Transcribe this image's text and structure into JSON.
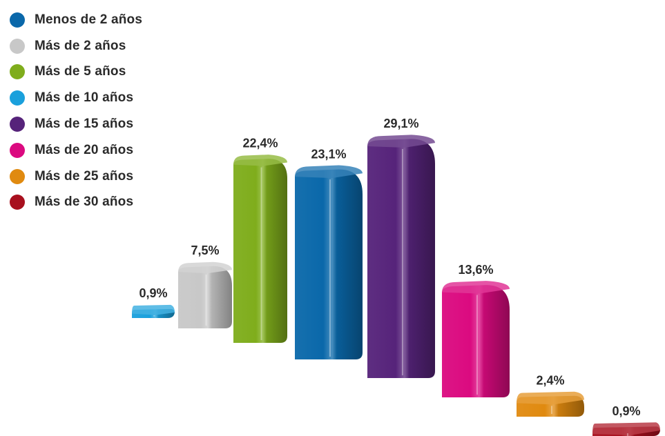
{
  "chart_data": {
    "type": "bar",
    "categories": [
      "Más de 10 años",
      "Más de 2 años",
      "Más de 5 años",
      "Menos de 2 años",
      "Más de 15 años",
      "Más de 20 años",
      "Más de 25 años",
      "Más de 30 años"
    ],
    "values": [
      0.9,
      7.5,
      22.4,
      23.1,
      29.1,
      13.6,
      2.4,
      0.9
    ],
    "data_labels": [
      "0,9%",
      "7,5%",
      "22,4%",
      "23,1%",
      "29,1%",
      "13,6%",
      "2,4%",
      "0,9%"
    ],
    "colors": [
      "#1aa0dc",
      "#c8c8c8",
      "#7fad1c",
      "#0a68aa",
      "#56237a",
      "#db0a80",
      "#e08a10",
      "#a8101e"
    ],
    "legend": [
      {
        "label": "Menos de 2 años",
        "color": "#0a68aa"
      },
      {
        "label": "Más de 2 años",
        "color": "#c8c8c8"
      },
      {
        "label": "Más de 5 años",
        "color": "#7fad1c"
      },
      {
        "label": "Más de 10 años",
        "color": "#1aa0dc"
      },
      {
        "label": "Más de 15 años",
        "color": "#56237a"
      },
      {
        "label": "Más de 20 años",
        "color": "#db0a80"
      },
      {
        "label": "Más de 25 años",
        "color": "#e08a10"
      },
      {
        "label": "Más de 30 años",
        "color": "#a8101e"
      }
    ],
    "legend_position": "top-left",
    "style": "3d",
    "grid": false
  }
}
